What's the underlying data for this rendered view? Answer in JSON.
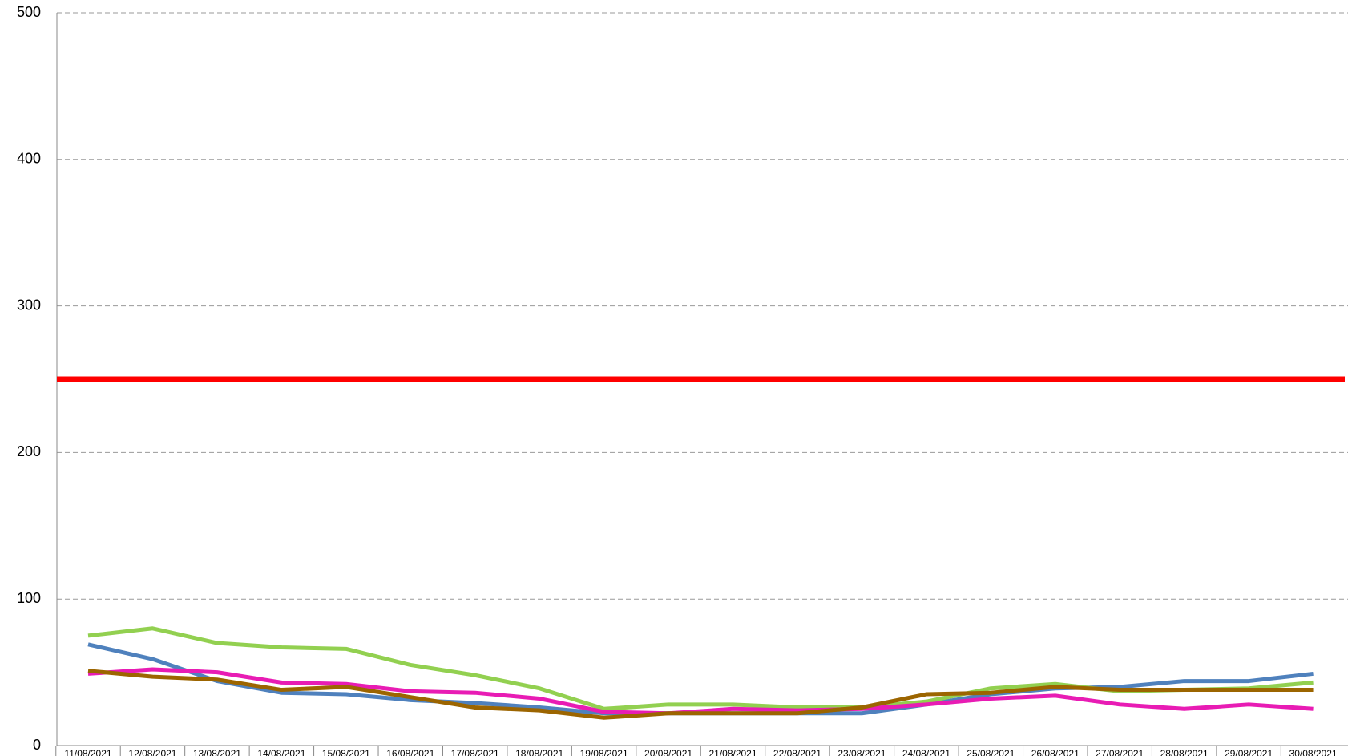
{
  "chart_data": {
    "type": "line",
    "categories": [
      "11/08/2021",
      "12/08/2021",
      "13/08/2021",
      "14/08/2021",
      "15/08/2021",
      "16/08/2021",
      "17/08/2021",
      "18/08/2021",
      "19/08/2021",
      "20/08/2021",
      "21/08/2021",
      "22/08/2021",
      "23/08/2021",
      "24/08/2021",
      "25/08/2021",
      "26/08/2021",
      "27/08/2021",
      "28/08/2021",
      "29/08/2021",
      "30/08/2021"
    ],
    "series": [
      {
        "color": "#4f81bd",
        "values": [
          69,
          59,
          44,
          36,
          35,
          31,
          29,
          26,
          22,
          22,
          22,
          22,
          22,
          28,
          35,
          39,
          40,
          44,
          44,
          49
        ]
      },
      {
        "color": "#92d050",
        "values": [
          75,
          80,
          70,
          67,
          66,
          55,
          48,
          39,
          25,
          28,
          28,
          26,
          26,
          30,
          39,
          42,
          37,
          38,
          39,
          43
        ]
      },
      {
        "color": "#e81cb4",
        "values": [
          49,
          52,
          50,
          43,
          42,
          37,
          36,
          32,
          23,
          22,
          25,
          24,
          25,
          28,
          32,
          34,
          28,
          25,
          28,
          25
        ]
      },
      {
        "color": "#9c6500",
        "values": [
          51,
          47,
          45,
          38,
          40,
          33,
          26,
          24,
          19,
          22,
          22,
          22,
          26,
          35,
          36,
          40,
          38,
          38,
          38,
          38
        ]
      }
    ],
    "reference_line": {
      "value": 250,
      "color": "#ff0000"
    },
    "ylim": [
      0,
      500
    ],
    "yticks": [
      0,
      100,
      200,
      300,
      400,
      500
    ],
    "grid": true
  }
}
